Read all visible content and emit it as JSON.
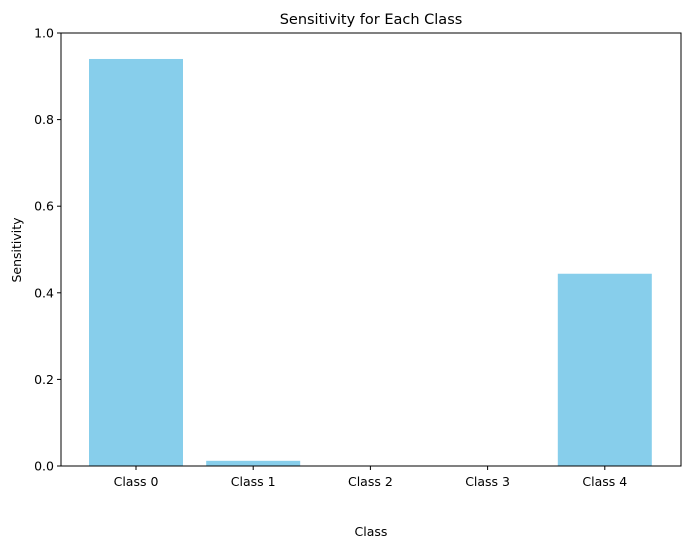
{
  "chart_data": {
    "type": "bar",
    "title": "Sensitivity for Each Class",
    "xlabel": "Class",
    "ylabel": "Sensitivity",
    "categories": [
      "Class 0",
      "Class 1",
      "Class 2",
      "Class 3",
      "Class 4"
    ],
    "values": [
      0.94,
      0.012,
      0.0,
      0.0,
      0.444
    ],
    "ylim": [
      0,
      1.0
    ],
    "yticks": [
      "0.0",
      "0.2",
      "0.4",
      "0.6",
      "0.8",
      "1.0"
    ],
    "bar_color": "#87ceeb",
    "grid": false,
    "legend": "none"
  }
}
